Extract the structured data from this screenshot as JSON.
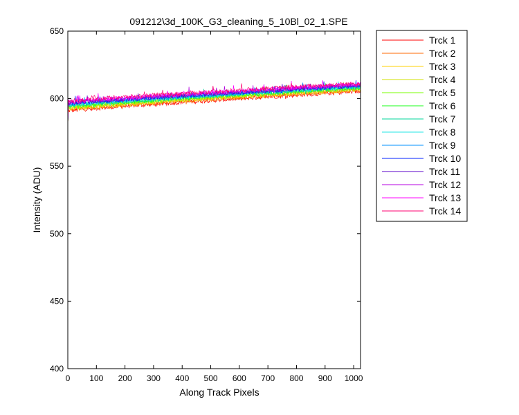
{
  "chart_data": {
    "type": "line",
    "title": "091212\\3d_100K_G3_cleaning_5_10Bl_02_1.SPE",
    "xlabel": "Along Track Pixels",
    "ylabel": "Intensity (ADU)",
    "xlim": [
      0,
      1024
    ],
    "ylim": [
      400,
      650
    ],
    "xticks": [
      0,
      100,
      200,
      300,
      400,
      500,
      600,
      700,
      800,
      900,
      1000
    ],
    "yticks": [
      400,
      450,
      500,
      550,
      600,
      650
    ],
    "grid": false,
    "legend_position": "outside-right",
    "series": [
      {
        "name": "Trck 1",
        "color": "#ff0000",
        "y_start": 591.0,
        "y_end": 605.5
      },
      {
        "name": "Trck 2",
        "color": "#ff6a00",
        "y_start": 591.8,
        "y_end": 606.2
      },
      {
        "name": "Trck 3",
        "color": "#ffd000",
        "y_start": 592.5,
        "y_end": 606.8
      },
      {
        "name": "Trck 4",
        "color": "#d0e000",
        "y_start": 593.0,
        "y_end": 607.3
      },
      {
        "name": "Trck 5",
        "color": "#7aff00",
        "y_start": 593.6,
        "y_end": 607.8
      },
      {
        "name": "Trck 6",
        "color": "#1aff1a",
        "y_start": 594.2,
        "y_end": 608.2
      },
      {
        "name": "Trck 7",
        "color": "#00d69a",
        "y_start": 594.7,
        "y_end": 608.6
      },
      {
        "name": "Trck 8",
        "color": "#22e6e6",
        "y_start": 595.2,
        "y_end": 609.0
      },
      {
        "name": "Trck 9",
        "color": "#0090ff",
        "y_start": 595.7,
        "y_end": 609.4
      },
      {
        "name": "Trck 10",
        "color": "#0020ff",
        "y_start": 596.1,
        "y_end": 609.7
      },
      {
        "name": "Trck 11",
        "color": "#5a00c8",
        "y_start": 596.6,
        "y_end": 610.0
      },
      {
        "name": "Trck 12",
        "color": "#b400e0",
        "y_start": 597.1,
        "y_end": 610.4
      },
      {
        "name": "Trck 13",
        "color": "#ff00ff",
        "y_start": 597.6,
        "y_end": 610.8
      },
      {
        "name": "Trck 14",
        "color": "#ff0070",
        "y_start": 598.2,
        "y_end": 611.4
      }
    ]
  }
}
